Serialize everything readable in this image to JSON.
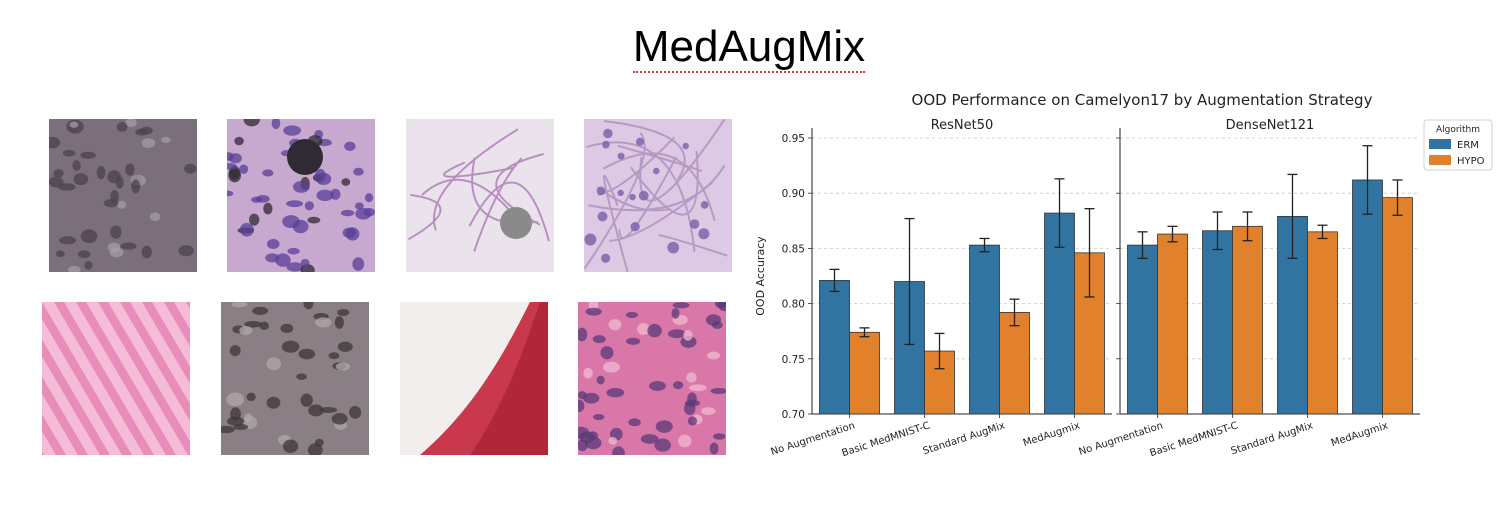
{
  "slide": {
    "title": "MedAugMix"
  },
  "tiles": [
    {
      "name": "tissue-patch-1",
      "bg": "#7a6f7a",
      "cell": "#4e4050",
      "accent": "#a49ca6",
      "style": "dense"
    },
    {
      "name": "tissue-patch-2",
      "bg": "#c7a9d0",
      "cell": "#5a3f9a",
      "accent": "#2f2a33",
      "style": "dots-blot"
    },
    {
      "name": "tissue-patch-3",
      "bg": "#ebe3ec",
      "cell": "#b88fc0",
      "accent": "#8a8a8a",
      "style": "sparse-blot"
    },
    {
      "name": "tissue-patch-4",
      "bg": "#ddc9e3",
      "cell": "#7a5fa8",
      "accent": "#b79ac4",
      "style": "mesh"
    },
    {
      "name": "tissue-patch-5",
      "bg": "#e88cb9",
      "cell": "#f6c4dc",
      "accent": "#d869a6",
      "style": "stripes"
    },
    {
      "name": "tissue-patch-6",
      "bg": "#8a7f84",
      "cell": "#3f3538",
      "accent": "#b0a7aa",
      "style": "dense"
    },
    {
      "name": "tissue-patch-7",
      "bg": "#f3eeee",
      "cell": "#c9384c",
      "accent": "#a81f33",
      "style": "red-wedge"
    },
    {
      "name": "tissue-patch-8",
      "bg": "#d978a8",
      "cell": "#5a3a7a",
      "accent": "#f0b8d2",
      "style": "dots"
    }
  ],
  "chart_data": {
    "type": "bar",
    "title": "OOD Performance on Camelyon17 by Augmentation Strategy",
    "ylabel": "OOD Accuracy",
    "ylim": [
      0.7,
      0.95
    ],
    "yticks": [
      "0.70",
      "0.75",
      "0.80",
      "0.85",
      "0.90",
      "0.95"
    ],
    "grid": true,
    "legend": {
      "title": "Algorithm",
      "placement": "top-right",
      "entries": [
        "ERM",
        "HYPO"
      ]
    },
    "colors": {
      "ERM": "#3274a1",
      "HYPO": "#e1812c"
    },
    "categories": [
      "No Augmentation",
      "Basic MedMNIST-C",
      "Standard AugMix",
      "MedAugmix"
    ],
    "panels": [
      {
        "title": "ResNet50",
        "series": [
          {
            "name": "ERM",
            "values": [
              0.821,
              0.82,
              0.853,
              0.882
            ],
            "err": [
              0.01,
              0.057,
              0.006,
              0.031
            ]
          },
          {
            "name": "HYPO",
            "values": [
              0.774,
              0.757,
              0.792,
              0.846
            ],
            "err": [
              0.004,
              0.016,
              0.012,
              0.04
            ]
          }
        ]
      },
      {
        "title": "DenseNet121",
        "series": [
          {
            "name": "ERM",
            "values": [
              0.853,
              0.866,
              0.879,
              0.912
            ],
            "err": [
              0.012,
              0.017,
              0.038,
              0.031
            ]
          },
          {
            "name": "HYPO",
            "values": [
              0.863,
              0.87,
              0.865,
              0.896
            ],
            "err": [
              0.007,
              0.013,
              0.006,
              0.016
            ]
          }
        ]
      }
    ]
  }
}
